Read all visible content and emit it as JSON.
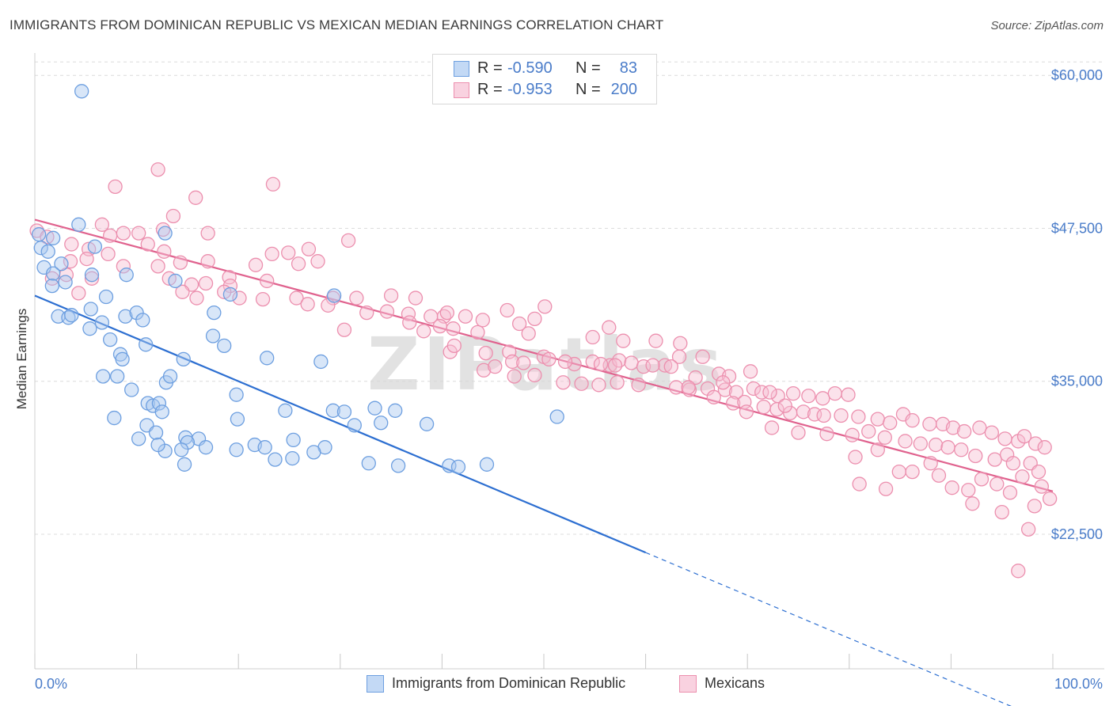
{
  "title": "IMMIGRANTS FROM DOMINICAN REPUBLIC VS MEXICAN MEDIAN EARNINGS CORRELATION CHART",
  "source": "Source: ZipAtlas.com",
  "watermark": "ZIPatlas",
  "colors": {
    "blue_fill": "#a9c8f0",
    "blue_stroke": "#6d9fe0",
    "blue_line": "#2d6fd1",
    "pink_fill": "#f6bfd2",
    "pink_stroke": "#ec8fae",
    "pink_line": "#e0628e",
    "tick_text": "#4a7cc9"
  },
  "legend": {
    "rows": [
      {
        "r_label": "R =",
        "r_value": "-0.590",
        "n_label": "N =",
        "n_value": "83"
      },
      {
        "r_label": "R =",
        "r_value": "-0.953",
        "n_label": "N =",
        "n_value": "200"
      }
    ]
  },
  "bottom_legend": [
    "Immigrants from Dominican Republic",
    "Mexicans"
  ],
  "chart_data": {
    "type": "scatter",
    "title": "IMMIGRANTS FROM DOMINICAN REPUBLIC VS MEXICAN MEDIAN EARNINGS CORRELATION CHART",
    "xlabel": "",
    "ylabel": "Median Earnings",
    "xlim": [
      0,
      100
    ],
    "ylim": [
      11500,
      61500
    ],
    "x_tick_labels": [
      "0.0%",
      "100.0%"
    ],
    "y_ticks": [
      22500,
      35000,
      47500,
      60000
    ],
    "y_tick_labels": [
      "$22,500",
      "$35,000",
      "$47,500",
      "$60,000"
    ],
    "grid": true,
    "legend_position": "top-center",
    "series": [
      {
        "name": "Immigrants from Dominican Republic",
        "R": -0.59,
        "N": 83,
        "trend": {
          "x0": 0,
          "y0": 42000,
          "x1": 60,
          "y1": 21000,
          "dashed_to_x": 100,
          "dashed_to_y": 7000
        },
        "points": [
          [
            4.6,
            58700
          ],
          [
            0.4,
            47000
          ],
          [
            1.8,
            46700
          ],
          [
            4.3,
            47800
          ],
          [
            12.8,
            47100
          ],
          [
            0.6,
            45900
          ],
          [
            1.3,
            45600
          ],
          [
            2.6,
            44600
          ],
          [
            5.9,
            46000
          ],
          [
            0.9,
            44300
          ],
          [
            1.8,
            43800
          ],
          [
            3.0,
            43100
          ],
          [
            5.6,
            43700
          ],
          [
            9.0,
            43700
          ],
          [
            13.8,
            43200
          ],
          [
            1.7,
            42800
          ],
          [
            7.0,
            41900
          ],
          [
            19.2,
            42100
          ],
          [
            29.4,
            42000
          ],
          [
            5.5,
            40900
          ],
          [
            2.3,
            40300
          ],
          [
            3.3,
            40200
          ],
          [
            3.6,
            40400
          ],
          [
            8.9,
            40300
          ],
          [
            10.0,
            40600
          ],
          [
            10.6,
            40000
          ],
          [
            17.6,
            40600
          ],
          [
            6.6,
            39800
          ],
          [
            5.4,
            39300
          ],
          [
            7.4,
            38400
          ],
          [
            10.9,
            38000
          ],
          [
            17.5,
            38700
          ],
          [
            18.6,
            37900
          ],
          [
            8.4,
            37200
          ],
          [
            8.6,
            36800
          ],
          [
            14.6,
            36800
          ],
          [
            22.8,
            36900
          ],
          [
            28.1,
            36600
          ],
          [
            6.7,
            35400
          ],
          [
            8.1,
            35400
          ],
          [
            12.9,
            34900
          ],
          [
            13.3,
            35400
          ],
          [
            9.5,
            34300
          ],
          [
            19.8,
            33900
          ],
          [
            11.1,
            33200
          ],
          [
            11.6,
            33000
          ],
          [
            12.2,
            33200
          ],
          [
            12.5,
            32500
          ],
          [
            7.8,
            32000
          ],
          [
            19.9,
            31900
          ],
          [
            24.6,
            32600
          ],
          [
            29.3,
            32600
          ],
          [
            30.4,
            32500
          ],
          [
            33.4,
            32800
          ],
          [
            35.4,
            32600
          ],
          [
            51.3,
            32100
          ],
          [
            11.0,
            31400
          ],
          [
            31.4,
            31400
          ],
          [
            34.0,
            31600
          ],
          [
            38.5,
            31500
          ],
          [
            10.2,
            30300
          ],
          [
            14.8,
            30400
          ],
          [
            16.1,
            30300
          ],
          [
            11.9,
            30800
          ],
          [
            15.0,
            30000
          ],
          [
            21.6,
            29800
          ],
          [
            22.6,
            29600
          ],
          [
            25.4,
            30200
          ],
          [
            28.5,
            29600
          ],
          [
            19.8,
            29400
          ],
          [
            12.8,
            29300
          ],
          [
            12.1,
            29800
          ],
          [
            14.4,
            29400
          ],
          [
            16.8,
            29600
          ],
          [
            23.6,
            28600
          ],
          [
            25.3,
            28700
          ],
          [
            27.4,
            29200
          ],
          [
            14.7,
            28200
          ],
          [
            32.8,
            28300
          ],
          [
            35.7,
            28100
          ],
          [
            40.7,
            28100
          ],
          [
            41.6,
            28000
          ],
          [
            44.4,
            28200
          ]
        ]
      },
      {
        "name": "Mexicans",
        "R": -0.953,
        "N": 200,
        "trend": {
          "x0": 0,
          "y0": 48200,
          "x1": 100,
          "y1": 26000
        },
        "points": [
          [
            0.2,
            47300
          ],
          [
            1.2,
            46800
          ],
          [
            3.6,
            46200
          ],
          [
            6.6,
            47800
          ],
          [
            7.4,
            46900
          ],
          [
            8.7,
            47100
          ],
          [
            10.2,
            47100
          ],
          [
            12.6,
            47400
          ],
          [
            15.8,
            50000
          ],
          [
            17.0,
            47100
          ],
          [
            23.4,
            51100
          ],
          [
            30.8,
            46500
          ],
          [
            7.9,
            50900
          ],
          [
            12.1,
            52300
          ],
          [
            13.6,
            48500
          ],
          [
            5.3,
            45800
          ],
          [
            7.2,
            45400
          ],
          [
            11.1,
            46200
          ],
          [
            12.7,
            45600
          ],
          [
            17.0,
            44800
          ],
          [
            23.3,
            45400
          ],
          [
            24.9,
            45500
          ],
          [
            26.9,
            45800
          ],
          [
            3.5,
            44800
          ],
          [
            5.1,
            45000
          ],
          [
            8.7,
            44400
          ],
          [
            12.1,
            44400
          ],
          [
            14.3,
            44700
          ],
          [
            19.1,
            43500
          ],
          [
            21.7,
            44500
          ],
          [
            25.9,
            44600
          ],
          [
            27.8,
            44800
          ],
          [
            1.7,
            43400
          ],
          [
            3.1,
            43700
          ],
          [
            5.6,
            43400
          ],
          [
            13.2,
            43400
          ],
          [
            15.4,
            42900
          ],
          [
            16.8,
            43000
          ],
          [
            19.2,
            42800
          ],
          [
            22.8,
            43200
          ],
          [
            4.3,
            42200
          ],
          [
            14.5,
            42300
          ],
          [
            15.9,
            41800
          ],
          [
            18.6,
            42300
          ],
          [
            20.1,
            41800
          ],
          [
            22.4,
            41700
          ],
          [
            25.7,
            41800
          ],
          [
            29.3,
            41800
          ],
          [
            31.6,
            41800
          ],
          [
            35.0,
            42000
          ],
          [
            37.4,
            41800
          ],
          [
            26.8,
            41300
          ],
          [
            28.8,
            41200
          ],
          [
            32.6,
            40600
          ],
          [
            34.6,
            40700
          ],
          [
            36.7,
            40500
          ],
          [
            38.9,
            40300
          ],
          [
            40.2,
            40300
          ],
          [
            40.5,
            40600
          ],
          [
            42.3,
            40300
          ],
          [
            46.4,
            40800
          ],
          [
            50.1,
            41100
          ],
          [
            36.8,
            39800
          ],
          [
            39.8,
            39500
          ],
          [
            41.1,
            39300
          ],
          [
            44.0,
            40000
          ],
          [
            47.6,
            39700
          ],
          [
            49.1,
            40100
          ],
          [
            56.4,
            39400
          ],
          [
            30.4,
            39200
          ],
          [
            38.2,
            39100
          ],
          [
            43.5,
            39000
          ],
          [
            48.5,
            38900
          ],
          [
            54.8,
            38600
          ],
          [
            57.8,
            38300
          ],
          [
            61.0,
            38300
          ],
          [
            63.4,
            38100
          ],
          [
            40.8,
            37400
          ],
          [
            44.3,
            37300
          ],
          [
            46.6,
            37400
          ],
          [
            50.0,
            37000
          ],
          [
            53.0,
            36400
          ],
          [
            56.5,
            36300
          ],
          [
            57.4,
            36700
          ],
          [
            58.6,
            36500
          ],
          [
            61.9,
            36300
          ],
          [
            63.3,
            37000
          ],
          [
            65.6,
            37000
          ],
          [
            41.2,
            37900
          ],
          [
            46.9,
            36600
          ],
          [
            48.0,
            36500
          ],
          [
            50.5,
            36800
          ],
          [
            52.1,
            36600
          ],
          [
            54.8,
            36600
          ],
          [
            55.6,
            36400
          ],
          [
            57.0,
            36300
          ],
          [
            59.8,
            36200
          ],
          [
            60.7,
            36300
          ],
          [
            62.5,
            36200
          ],
          [
            64.9,
            35300
          ],
          [
            67.2,
            35600
          ],
          [
            68.2,
            35400
          ],
          [
            44.1,
            35900
          ],
          [
            45.2,
            36200
          ],
          [
            47.1,
            35400
          ],
          [
            49.1,
            35500
          ],
          [
            51.9,
            34900
          ],
          [
            53.7,
            34800
          ],
          [
            55.4,
            34700
          ],
          [
            57.2,
            34900
          ],
          [
            59.3,
            34700
          ],
          [
            63.0,
            34500
          ],
          [
            64.3,
            34300
          ],
          [
            66.1,
            34400
          ],
          [
            67.8,
            34300
          ],
          [
            68.9,
            34100
          ],
          [
            70.6,
            34400
          ],
          [
            71.4,
            34100
          ],
          [
            73.0,
            33800
          ],
          [
            74.5,
            34000
          ],
          [
            76.0,
            33800
          ],
          [
            77.4,
            33600
          ],
          [
            78.6,
            34000
          ],
          [
            79.9,
            33900
          ],
          [
            66.7,
            33700
          ],
          [
            68.6,
            33200
          ],
          [
            69.7,
            33300
          ],
          [
            71.6,
            32900
          ],
          [
            72.9,
            32700
          ],
          [
            74.2,
            32400
          ],
          [
            75.5,
            32500
          ],
          [
            76.6,
            32300
          ],
          [
            77.5,
            32200
          ],
          [
            79.2,
            32200
          ],
          [
            80.9,
            32100
          ],
          [
            82.8,
            31900
          ],
          [
            84.0,
            31600
          ],
          [
            85.3,
            32300
          ],
          [
            86.2,
            31800
          ],
          [
            87.9,
            31500
          ],
          [
            89.2,
            31500
          ],
          [
            90.2,
            31200
          ],
          [
            91.3,
            30900
          ],
          [
            92.8,
            31200
          ],
          [
            94.0,
            30800
          ],
          [
            95.3,
            30300
          ],
          [
            96.6,
            30100
          ],
          [
            97.2,
            30500
          ],
          [
            98.3,
            29900
          ],
          [
            99.2,
            29600
          ],
          [
            69.9,
            32500
          ],
          [
            72.4,
            31200
          ],
          [
            75.0,
            30800
          ],
          [
            77.8,
            30700
          ],
          [
            80.3,
            30600
          ],
          [
            81.9,
            30900
          ],
          [
            83.5,
            30400
          ],
          [
            85.5,
            30100
          ],
          [
            87.0,
            29900
          ],
          [
            88.5,
            29800
          ],
          [
            89.7,
            29600
          ],
          [
            91.0,
            29400
          ],
          [
            92.4,
            28900
          ],
          [
            94.3,
            28600
          ],
          [
            95.5,
            29000
          ],
          [
            96.1,
            28300
          ],
          [
            97.8,
            28300
          ],
          [
            98.6,
            27600
          ],
          [
            64.2,
            34500
          ],
          [
            67.6,
            34900
          ],
          [
            70.3,
            35800
          ],
          [
            72.2,
            34100
          ],
          [
            73.7,
            33000
          ],
          [
            80.6,
            28800
          ],
          [
            82.8,
            29400
          ],
          [
            84.9,
            27600
          ],
          [
            86.2,
            27600
          ],
          [
            88.8,
            27300
          ],
          [
            90.1,
            26300
          ],
          [
            91.7,
            26100
          ],
          [
            93.0,
            27000
          ],
          [
            94.5,
            26600
          ],
          [
            95.8,
            25900
          ],
          [
            97.0,
            27200
          ],
          [
            98.9,
            26400
          ],
          [
            99.7,
            25400
          ],
          [
            88.0,
            28300
          ],
          [
            92.1,
            25000
          ],
          [
            95.0,
            24300
          ],
          [
            97.6,
            22900
          ],
          [
            98.2,
            24800
          ],
          [
            81.0,
            26600
          ],
          [
            83.6,
            26200
          ],
          [
            96.6,
            19500
          ]
        ]
      }
    ]
  }
}
